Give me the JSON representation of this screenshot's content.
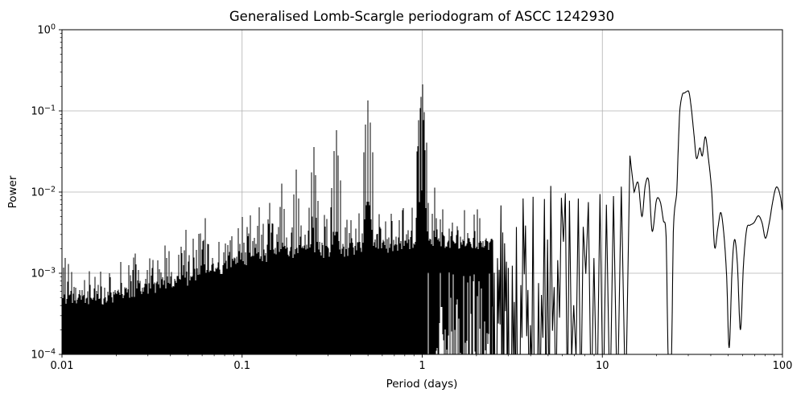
{
  "figure": {
    "title": "Generalised Lomb-Scargle periodogram of ASCC 1242930",
    "xlabel": "Period (days)",
    "ylabel": "Power"
  },
  "chart_data": {
    "type": "line",
    "title": "Generalised Lomb-Scargle periodogram of ASCC 1242930",
    "xlabel": "Period (days)",
    "ylabel": "Power",
    "xscale": "log",
    "yscale": "log",
    "xlim": [
      0.01,
      100
    ],
    "ylim": [
      0.0001,
      1
    ],
    "grid": true,
    "legend": false,
    "line_color": "#000000",
    "grid_color": "#b0b0b0",
    "background_color": "#ffffff",
    "x_ticks": [
      {
        "value": 0.01,
        "label": "0.01"
      },
      {
        "value": 0.1,
        "label": "0.1"
      },
      {
        "value": 1,
        "label": "1"
      },
      {
        "value": 10,
        "label": "10"
      },
      {
        "value": 100,
        "label": "100"
      }
    ],
    "y_ticks": [
      {
        "value": 1,
        "mantissa": "10",
        "exponent": "0"
      },
      {
        "value": 0.1,
        "mantissa": "10",
        "exponent": "−1"
      },
      {
        "value": 0.01,
        "mantissa": "10",
        "exponent": "−2"
      },
      {
        "value": 0.001,
        "mantissa": "10",
        "exponent": "−3"
      },
      {
        "value": 0.0001,
        "mantissa": "10",
        "exponent": "−4"
      }
    ],
    "description": "Dense spectral-window forest of peaks below ~3 days (solid black below ~0.6 d), resolved spikes 3-15 d, smooth curve beyond ~15 d with broad maximum near 29 days.",
    "main_peaks": [
      {
        "period": 0.049,
        "power": 0.0032
      },
      {
        "period": 0.0625,
        "power": 0.0052
      },
      {
        "period": 0.1,
        "power": 0.0047
      },
      {
        "period": 0.1111,
        "power": 0.0052
      },
      {
        "period": 0.125,
        "power": 0.0069
      },
      {
        "period": 0.1429,
        "power": 0.0081
      },
      {
        "period": 0.1667,
        "power": 0.0128
      },
      {
        "period": 0.2,
        "power": 0.0185
      },
      {
        "period": 0.25,
        "power": 0.034
      },
      {
        "period": 0.2857,
        "power": 0.0048
      },
      {
        "period": 0.3333,
        "power": 0.061
      },
      {
        "period": 0.5,
        "power": 0.143
      },
      {
        "period": 0.985,
        "power": 0.157
      },
      {
        "period": 1.0,
        "power": 0.197
      },
      {
        "period": 1.17,
        "power": 0.0105
      }
    ],
    "resolved_spikes": [
      {
        "period": 3.6,
        "power": 0.009
      },
      {
        "period": 4.1,
        "power": 0.0085
      },
      {
        "period": 4.75,
        "power": 0.008
      },
      {
        "period": 5.2,
        "power": 0.0125
      },
      {
        "period": 5.9,
        "power": 0.0085
      },
      {
        "period": 6.6,
        "power": 0.008
      },
      {
        "period": 7.4,
        "power": 0.0085
      },
      {
        "period": 8.1,
        "power": 0.008
      },
      {
        "period": 9.7,
        "power": 0.009
      },
      {
        "period": 10.6,
        "power": 0.0075
      },
      {
        "period": 11.3,
        "power": 0.0085
      },
      {
        "period": 12.1,
        "power": 0.009
      },
      {
        "period": 13.4,
        "power": 0.0125
      },
      {
        "period": 14.0,
        "power": 0.011
      },
      {
        "period": 14.6,
        "power": 0.027
      }
    ],
    "noise_envelope": [
      [
        0.01,
        0.00072
      ],
      [
        0.02,
        0.00075
      ],
      [
        0.04,
        0.0011
      ],
      [
        0.07,
        0.0016
      ],
      [
        0.1,
        0.0022
      ],
      [
        0.2,
        0.0026
      ],
      [
        0.5,
        0.003
      ],
      [
        1.0,
        0.0035
      ],
      [
        2.0,
        0.0033
      ],
      [
        4.0,
        0.0035
      ],
      [
        8.0,
        0.004
      ],
      [
        15.0,
        0.0045
      ]
    ],
    "smooth_tail": [
      [
        15.0,
        0.01
      ],
      [
        15.8,
        0.013
      ],
      [
        16.6,
        0.005
      ],
      [
        17.3,
        0.012
      ],
      [
        18.1,
        0.0135
      ],
      [
        18.9,
        0.0033
      ],
      [
        20.0,
        0.008
      ],
      [
        21.0,
        0.0075
      ],
      [
        21.8,
        0.0045
      ],
      [
        22.6,
        0.0028
      ],
      [
        23.2,
        9e-05
      ],
      [
        24.2,
        9e-05
      ],
      [
        24.8,
        0.0035
      ],
      [
        25.9,
        0.01
      ],
      [
        26.4,
        0.035
      ],
      [
        26.9,
        0.1
      ],
      [
        27.8,
        0.158
      ],
      [
        28.6,
        0.166
      ],
      [
        29.4,
        0.173
      ],
      [
        30.3,
        0.168
      ],
      [
        31.3,
        0.1
      ],
      [
        32.3,
        0.05
      ],
      [
        33.3,
        0.026
      ],
      [
        34.8,
        0.035
      ],
      [
        35.9,
        0.028
      ],
      [
        37.3,
        0.048
      ],
      [
        38.8,
        0.026
      ],
      [
        40.5,
        0.01
      ],
      [
        42.0,
        0.0021
      ],
      [
        43.8,
        0.0036
      ],
      [
        45.5,
        0.0056
      ],
      [
        47.3,
        0.003
      ],
      [
        49.0,
        0.0009
      ],
      [
        50.6,
        0.00012
      ],
      [
        52.5,
        0.0011
      ],
      [
        54.2,
        0.0026
      ],
      [
        56.2,
        0.0013
      ],
      [
        58.4,
        0.0002
      ],
      [
        60.8,
        0.0013
      ],
      [
        63.3,
        0.0035
      ],
      [
        66.0,
        0.0039
      ],
      [
        69.5,
        0.0042
      ],
      [
        73.5,
        0.0051
      ],
      [
        77.0,
        0.0042
      ],
      [
        80.5,
        0.0027
      ],
      [
        84.5,
        0.0042
      ],
      [
        88.5,
        0.0078
      ],
      [
        92.0,
        0.0113
      ],
      [
        95.0,
        0.0108
      ],
      [
        98.0,
        0.0082
      ],
      [
        100.0,
        0.0057
      ]
    ]
  }
}
